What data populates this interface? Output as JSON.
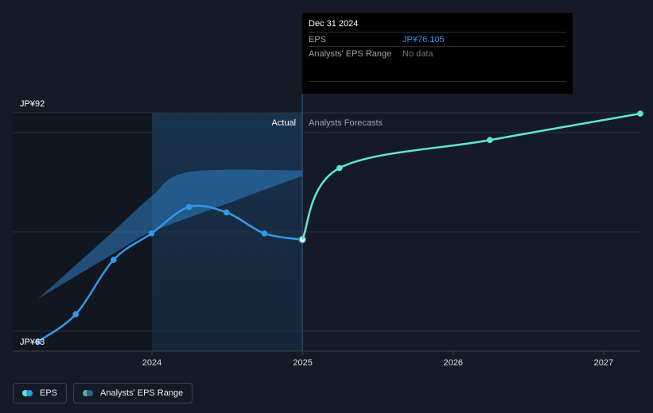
{
  "chart_data": {
    "type": "line",
    "y_axis": {
      "top_label": "JP¥92",
      "bottom_label": "JP¥63",
      "ylim": [
        63,
        92
      ]
    },
    "x_axis": {
      "ticks": [
        "2024",
        "2025",
        "2026",
        "2027"
      ],
      "xlim": [
        "2023-03-31",
        "2027-03-31"
      ]
    },
    "sections": {
      "actual_label": "Actual",
      "forecast_label": "Analysts Forecasts",
      "divider_date": "2024-12-31"
    },
    "series": [
      {
        "name": "EPS",
        "color": "#2f9ae8",
        "points": [
          {
            "date": "2023-03-31",
            "value": 63.0
          },
          {
            "date": "2023-06-30",
            "value": 66.5
          },
          {
            "date": "2023-09-30",
            "value": 73.5
          },
          {
            "date": "2023-12-31",
            "value": 76.9
          },
          {
            "date": "2024-03-31",
            "value": 80.3
          },
          {
            "date": "2024-06-30",
            "value": 79.6
          },
          {
            "date": "2024-09-30",
            "value": 76.9
          },
          {
            "date": "2024-12-31",
            "value": 76.105
          }
        ]
      },
      {
        "name": "EPS forecast",
        "color": "#5ee8d4",
        "points": [
          {
            "date": "2024-12-31",
            "value": 76.105
          },
          {
            "date": "2025-03-31",
            "value": 85.3
          },
          {
            "date": "2026-03-31",
            "value": 88.9
          },
          {
            "date": "2027-03-31",
            "value": 92.3
          }
        ]
      }
    ],
    "range_band": {
      "name": "Analysts' EPS Range",
      "color": "#2f7fc4",
      "upper": [
        {
          "date": "2023-03-31",
          "value": 68.5
        },
        {
          "date": "2023-09-30",
          "value": 77.2
        },
        {
          "date": "2024-01-01",
          "value": 81.7
        },
        {
          "date": "2024-03-31",
          "value": 84.8
        },
        {
          "date": "2024-12-31",
          "value": 85.0
        }
      ],
      "lower": [
        {
          "date": "2023-03-31",
          "value": 68.5
        },
        {
          "date": "2023-09-30",
          "value": 74.3
        },
        {
          "date": "2024-01-01",
          "value": 77.1
        },
        {
          "date": "2024-06-30",
          "value": 80.7
        },
        {
          "date": "2024-12-31",
          "value": 84.3
        }
      ]
    }
  },
  "tooltip": {
    "date": "Dec 31 2024",
    "eps_label": "EPS",
    "eps_value": "JP¥76.105",
    "range_label": "Analysts' EPS Range",
    "range_value": "No data"
  },
  "legend": {
    "eps_label": "EPS",
    "eps_colors": [
      "#5ee8d4",
      "#2f9ae8"
    ],
    "range_label": "Analysts' EPS Range",
    "range_colors": [
      "#5aa9a0",
      "#2a5f8f"
    ]
  }
}
